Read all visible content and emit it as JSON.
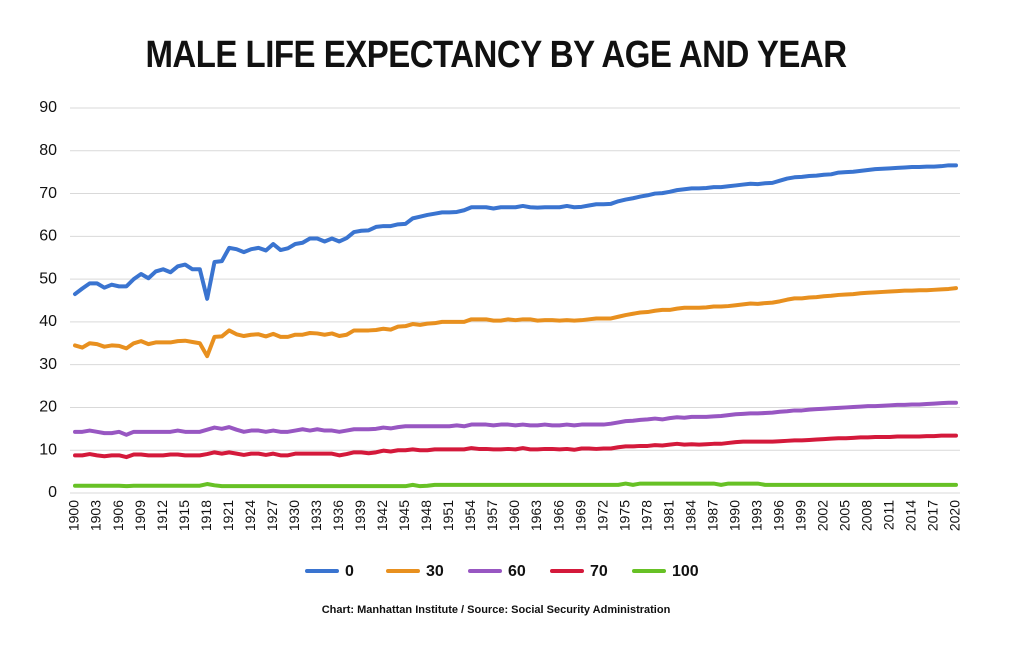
{
  "chart_data": {
    "type": "line",
    "title": "MALE LIFE EXPECTANCY BY AGE AND YEAR",
    "source": "Chart: Manhattan Institute  /  Source: Social Security Administration",
    "x": [
      1900,
      1901,
      1902,
      1903,
      1904,
      1905,
      1906,
      1907,
      1908,
      1909,
      1910,
      1911,
      1912,
      1913,
      1914,
      1915,
      1916,
      1917,
      1918,
      1919,
      1920,
      1921,
      1922,
      1923,
      1924,
      1925,
      1926,
      1927,
      1928,
      1929,
      1930,
      1931,
      1932,
      1933,
      1934,
      1935,
      1936,
      1937,
      1938,
      1939,
      1940,
      1941,
      1942,
      1943,
      1944,
      1945,
      1946,
      1947,
      1948,
      1949,
      1950,
      1951,
      1952,
      1953,
      1954,
      1955,
      1956,
      1957,
      1958,
      1959,
      1960,
      1961,
      1962,
      1963,
      1964,
      1965,
      1966,
      1967,
      1968,
      1969,
      1970,
      1971,
      1972,
      1973,
      1974,
      1975,
      1976,
      1977,
      1978,
      1979,
      1980,
      1981,
      1982,
      1983,
      1984,
      1985,
      1986,
      1987,
      1988,
      1989,
      1990,
      1991,
      1992,
      1993,
      1994,
      1995,
      1996,
      1997,
      1998,
      1999,
      2000,
      2001,
      2002,
      2003,
      2004,
      2005,
      2006,
      2007,
      2008,
      2009,
      2010,
      2011,
      2012,
      2013,
      2014,
      2015,
      2016,
      2017,
      2018,
      2019,
      2020
    ],
    "xlim": [
      1900,
      2020
    ],
    "xticks": [
      1900,
      1903,
      1906,
      1909,
      1912,
      1915,
      1918,
      1921,
      1924,
      1927,
      1930,
      1933,
      1936,
      1939,
      1942,
      1945,
      1948,
      1951,
      1954,
      1957,
      1960,
      1963,
      1966,
      1969,
      1972,
      1975,
      1978,
      1981,
      1984,
      1987,
      1990,
      1993,
      1996,
      1999,
      2002,
      2005,
      2008,
      2011,
      2014,
      2017,
      2020
    ],
    "ylim": [
      0,
      90
    ],
    "yticks": [
      0,
      10,
      20,
      30,
      40,
      50,
      60,
      70,
      80,
      90
    ],
    "grid": true,
    "legend": "bottom",
    "series": [
      {
        "name": "0",
        "color": "#3a74d0",
        "values": [
          46.5,
          47.8,
          49,
          49,
          48,
          48.7,
          48.3,
          48.3,
          50,
          51.2,
          50.2,
          51.8,
          52.3,
          51.6,
          53,
          53.4,
          52.3,
          52.3,
          45.4,
          54,
          54.2,
          57.3,
          57,
          56.3,
          57,
          57.3,
          56.7,
          58.2,
          56.8,
          57.2,
          58.2,
          58.5,
          59.5,
          59.5,
          58.8,
          59.5,
          58.8,
          59.6,
          61,
          61.3,
          61.4,
          62.2,
          62.4,
          62.4,
          62.8,
          62.9,
          64.2,
          64.6,
          65,
          65.3,
          65.6,
          65.6,
          65.7,
          66.1,
          66.8,
          66.8,
          66.8,
          66.5,
          66.8,
          66.8,
          66.8,
          67.1,
          66.8,
          66.7,
          66.8,
          66.8,
          66.8,
          67.1,
          66.8,
          66.9,
          67.2,
          67.5,
          67.5,
          67.6,
          68.2,
          68.6,
          68.9,
          69.3,
          69.6,
          70,
          70.1,
          70.4,
          70.8,
          71,
          71.2,
          71.2,
          71.3,
          71.5,
          71.5,
          71.7,
          71.9,
          72.1,
          72.3,
          72.2,
          72.4,
          72.5,
          73,
          73.5,
          73.8,
          73.9,
          74.1,
          74.2,
          74.4,
          74.5,
          74.9,
          75,
          75.1,
          75.3,
          75.5,
          75.7,
          75.8,
          75.9,
          76,
          76.1,
          76.2,
          76.2,
          76.3,
          76.3,
          76.4,
          76.6,
          76.6
        ]
      },
      {
        "name": "30",
        "color": "#e8901f",
        "values": [
          34.5,
          34,
          35,
          34.8,
          34.2,
          34.5,
          34.4,
          33.8,
          35,
          35.5,
          34.8,
          35.2,
          35.2,
          35.2,
          35.5,
          35.6,
          35.3,
          35,
          32,
          36.5,
          36.6,
          38,
          37.1,
          36.7,
          37,
          37.1,
          36.6,
          37.2,
          36.5,
          36.5,
          37,
          37,
          37.4,
          37.3,
          37,
          37.3,
          36.7,
          37,
          38,
          38,
          38,
          38.1,
          38.4,
          38.2,
          38.9,
          39,
          39.5,
          39.3,
          39.6,
          39.7,
          40,
          40,
          40,
          40,
          40.6,
          40.6,
          40.6,
          40.3,
          40.3,
          40.6,
          40.4,
          40.6,
          40.6,
          40.3,
          40.4,
          40.4,
          40.3,
          40.4,
          40.3,
          40.4,
          40.6,
          40.8,
          40.8,
          40.8,
          41.2,
          41.6,
          41.9,
          42.2,
          42.3,
          42.6,
          42.8,
          42.8,
          43.1,
          43.3,
          43.3,
          43.3,
          43.4,
          43.6,
          43.6,
          43.7,
          43.9,
          44.1,
          44.3,
          44.2,
          44.4,
          44.5,
          44.8,
          45.2,
          45.5,
          45.5,
          45.7,
          45.8,
          46,
          46.1,
          46.3,
          46.4,
          46.5,
          46.7,
          46.8,
          46.9,
          47,
          47.1,
          47.2,
          47.3,
          47.3,
          47.4,
          47.4,
          47.5,
          47.6,
          47.7,
          47.9
        ]
      },
      {
        "name": "60",
        "color": "#9857c2",
        "values": [
          14.3,
          14.3,
          14.6,
          14.3,
          14,
          14,
          14.3,
          13.6,
          14.3,
          14.3,
          14.3,
          14.3,
          14.3,
          14.3,
          14.6,
          14.3,
          14.3,
          14.3,
          14.8,
          15.3,
          15,
          15.4,
          14.8,
          14.3,
          14.6,
          14.6,
          14.3,
          14.6,
          14.3,
          14.3,
          14.6,
          14.9,
          14.6,
          14.9,
          14.6,
          14.6,
          14.3,
          14.6,
          14.9,
          14.9,
          14.9,
          15,
          15.3,
          15.1,
          15.4,
          15.6,
          15.6,
          15.6,
          15.6,
          15.6,
          15.6,
          15.6,
          15.8,
          15.6,
          16,
          16,
          16,
          15.8,
          16,
          16,
          15.8,
          16,
          15.8,
          15.8,
          16,
          15.8,
          15.8,
          16,
          15.8,
          16,
          16,
          16,
          16,
          16.2,
          16.5,
          16.8,
          16.9,
          17.1,
          17.2,
          17.4,
          17.2,
          17.5,
          17.7,
          17.6,
          17.8,
          17.8,
          17.8,
          17.9,
          18,
          18.2,
          18.4,
          18.5,
          18.6,
          18.6,
          18.7,
          18.8,
          19,
          19.1,
          19.3,
          19.3,
          19.5,
          19.6,
          19.7,
          19.8,
          19.9,
          20,
          20.1,
          20.2,
          20.3,
          20.3,
          20.4,
          20.5,
          20.6,
          20.6,
          20.7,
          20.7,
          20.8,
          20.9,
          21,
          21.1,
          21.1
        ]
      },
      {
        "name": "70",
        "color": "#d4193b",
        "values": [
          8.8,
          8.8,
          9.1,
          8.8,
          8.6,
          8.8,
          8.8,
          8.4,
          9,
          9,
          8.8,
          8.8,
          8.8,
          9,
          9,
          8.8,
          8.8,
          8.8,
          9.1,
          9.5,
          9.2,
          9.5,
          9.2,
          8.9,
          9.2,
          9.2,
          8.9,
          9.2,
          8.8,
          8.8,
          9.2,
          9.2,
          9.2,
          9.2,
          9.2,
          9.2,
          8.8,
          9.1,
          9.5,
          9.5,
          9.3,
          9.5,
          9.9,
          9.7,
          10,
          10,
          10.2,
          10,
          10,
          10.2,
          10.2,
          10.2,
          10.2,
          10.2,
          10.5,
          10.3,
          10.3,
          10.2,
          10.2,
          10.3,
          10.2,
          10.5,
          10.2,
          10.2,
          10.3,
          10.3,
          10.2,
          10.3,
          10.1,
          10.4,
          10.4,
          10.3,
          10.4,
          10.4,
          10.7,
          10.9,
          10.9,
          11,
          11,
          11.2,
          11.1,
          11.3,
          11.5,
          11.3,
          11.4,
          11.3,
          11.4,
          11.5,
          11.5,
          11.7,
          11.9,
          12,
          12,
          12,
          12,
          12,
          12.1,
          12.2,
          12.3,
          12.3,
          12.4,
          12.5,
          12.6,
          12.7,
          12.8,
          12.8,
          12.9,
          13,
          13,
          13.1,
          13.1,
          13.1,
          13.2,
          13.2,
          13.2,
          13.2,
          13.3,
          13.3,
          13.4,
          13.4,
          13.4
        ]
      },
      {
        "name": "100",
        "color": "#67c125",
        "values": [
          1.7,
          1.7,
          1.7,
          1.7,
          1.7,
          1.7,
          1.7,
          1.6,
          1.7,
          1.7,
          1.7,
          1.7,
          1.7,
          1.7,
          1.7,
          1.7,
          1.7,
          1.7,
          2.1,
          1.8,
          1.6,
          1.6,
          1.6,
          1.6,
          1.6,
          1.6,
          1.6,
          1.6,
          1.6,
          1.6,
          1.6,
          1.6,
          1.6,
          1.6,
          1.6,
          1.6,
          1.6,
          1.6,
          1.6,
          1.6,
          1.6,
          1.6,
          1.6,
          1.6,
          1.6,
          1.6,
          1.9,
          1.6,
          1.7,
          1.9,
          1.9,
          1.9,
          1.9,
          1.9,
          1.9,
          1.9,
          1.9,
          1.9,
          1.9,
          1.9,
          1.9,
          1.9,
          1.9,
          1.9,
          1.9,
          1.9,
          1.9,
          1.9,
          1.9,
          1.9,
          1.9,
          1.9,
          1.9,
          1.9,
          1.9,
          2.2,
          1.9,
          2.2,
          2.2,
          2.2,
          2.2,
          2.2,
          2.2,
          2.2,
          2.2,
          2.2,
          2.2,
          2.2,
          1.9,
          2.2,
          2.2,
          2.2,
          2.2,
          2.2,
          1.9,
          1.9,
          1.9,
          1.9,
          1.9,
          1.9,
          1.9,
          1.9,
          1.9,
          1.9,
          1.9,
          1.9,
          1.9,
          1.9,
          1.9,
          1.9,
          1.9,
          1.9,
          1.9,
          1.9,
          1.9,
          1.9,
          1.9,
          1.9,
          1.9,
          1.9,
          1.9
        ]
      }
    ]
  }
}
